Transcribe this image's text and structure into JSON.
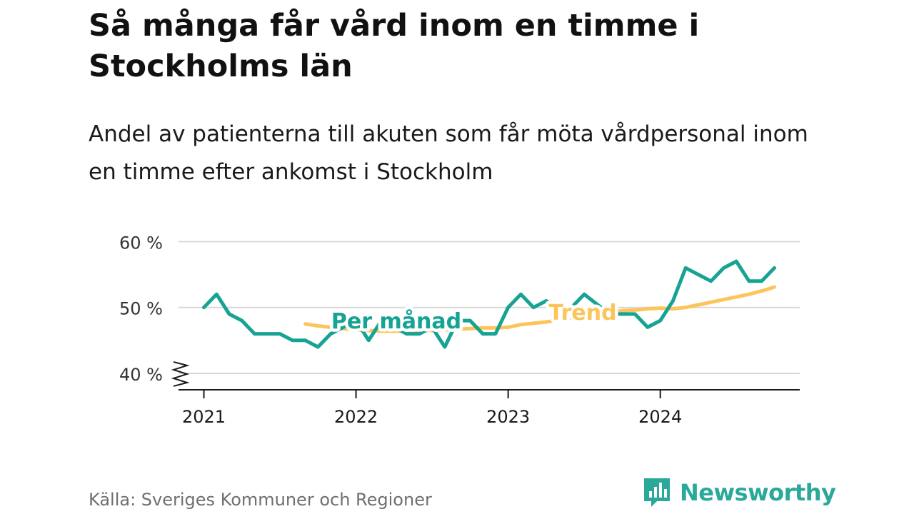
{
  "title": "Så många får vård inom en timme i Stockholms län",
  "subtitle": "Andel av patienterna till akuten som får möta vårdpersonal inom en timme efter ankomst i Stockholm",
  "source": "Källa: Sveriges Kommuner och Regioner",
  "brand": {
    "name": "Newsworthy",
    "icon": "newsworthy-logo-icon"
  },
  "colors": {
    "monthly": "#16a394",
    "trend": "#fcc55b",
    "grid": "#d9d9d9",
    "axis": "#1a1a1a"
  },
  "chart_data": {
    "type": "line",
    "x_unit": "month",
    "yticks": [
      {
        "value": 40,
        "label": "40 %"
      },
      {
        "value": 50,
        "label": "50 %"
      },
      {
        "value": 60,
        "label": "60 %"
      }
    ],
    "ylim": [
      37.5,
      62
    ],
    "axis_break": true,
    "xticks": [
      {
        "value": "2021-01",
        "label": "2021"
      },
      {
        "value": "2022-01",
        "label": "2022"
      },
      {
        "value": "2023-01",
        "label": "2023"
      },
      {
        "value": "2024-01",
        "label": "2024"
      }
    ],
    "xlim": [
      "2020-11",
      "2024-12"
    ],
    "series": [
      {
        "name": "Per månad",
        "x": [
          "2021-01",
          "2021-02",
          "2021-03",
          "2021-04",
          "2021-05",
          "2021-06",
          "2021-07",
          "2021-08",
          "2021-09",
          "2021-10",
          "2021-11",
          "2021-12",
          "2022-01",
          "2022-02",
          "2022-03",
          "2022-04",
          "2022-05",
          "2022-06",
          "2022-07",
          "2022-08",
          "2022-09",
          "2022-10",
          "2022-11",
          "2022-12",
          "2023-01",
          "2023-02",
          "2023-03",
          "2023-04",
          "2023-05",
          "2023-06",
          "2023-07",
          "2023-08",
          "2023-09",
          "2023-10",
          "2023-11",
          "2023-12",
          "2024-01",
          "2024-02",
          "2024-03",
          "2024-04",
          "2024-05",
          "2024-06",
          "2024-07",
          "2024-08",
          "2024-09",
          "2024-10"
        ],
        "values": [
          50,
          52,
          49,
          48,
          46,
          46,
          46,
          45,
          45,
          44,
          46,
          47,
          48,
          45,
          48,
          47,
          46,
          46,
          47,
          44,
          48,
          48,
          46,
          46,
          50,
          52,
          50,
          51,
          50,
          50,
          52,
          50.5,
          49,
          49,
          49,
          47,
          48,
          51,
          56,
          55,
          54,
          56,
          57,
          54,
          54,
          56
        ]
      },
      {
        "name": "Trend",
        "x": [
          "2021-09",
          "2021-10",
          "2021-11",
          "2021-12",
          "2022-01",
          "2022-02",
          "2022-03",
          "2022-04",
          "2022-05",
          "2022-06",
          "2022-07",
          "2022-08",
          "2022-09",
          "2022-10",
          "2022-11",
          "2022-12",
          "2023-01",
          "2023-02",
          "2023-03",
          "2023-04",
          "2023-05",
          "2023-06",
          "2023-07",
          "2023-08",
          "2023-09",
          "2023-10",
          "2023-11",
          "2023-12",
          "2024-01",
          "2024-02",
          "2024-03",
          "2024-04",
          "2024-05",
          "2024-06",
          "2024-07",
          "2024-08",
          "2024-09",
          "2024-10"
        ],
        "values": [
          47.5,
          47.2,
          47.0,
          46.8,
          46.6,
          46.5,
          46.4,
          46.4,
          46.4,
          46.5,
          46.5,
          46.6,
          46.7,
          46.8,
          46.9,
          46.9,
          47.0,
          47.4,
          47.6,
          47.8,
          48.1,
          48.4,
          48.7,
          49.0,
          49.3,
          49.5,
          49.6,
          49.8,
          49.9,
          49.8,
          50.0,
          50.4,
          50.8,
          51.2,
          51.6,
          52.0,
          52.5,
          53.1
        ]
      }
    ],
    "annotations": [
      {
        "text": "Per månad",
        "series": "Per månad"
      },
      {
        "text": "Trend",
        "series": "Trend"
      }
    ],
    "legend": "inline"
  }
}
